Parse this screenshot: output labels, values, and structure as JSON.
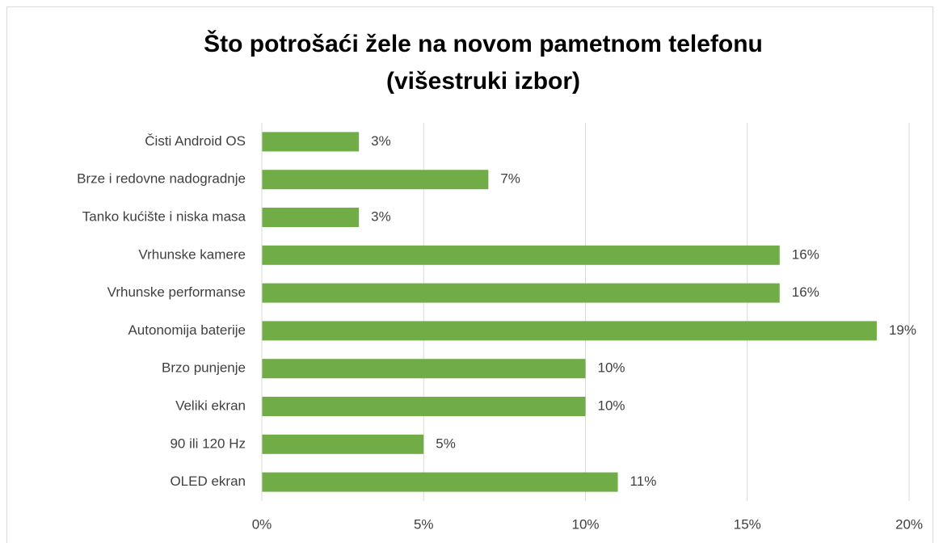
{
  "chart_data": {
    "type": "bar",
    "orientation": "horizontal",
    "title": [
      "Što potrošaći žele na novom pametnom telefonu",
      "(višestruki izbor)"
    ],
    "categories": [
      "Čisti Android OS",
      "Brze i redovne nadogradnje",
      "Tanko kućište i niska masa",
      "Vrhunske kamere",
      "Vrhunske performanse",
      "Autonomija baterije",
      "Brzo punjenje",
      "Veliki ekran",
      "90 ili 120 Hz",
      "OLED ekran"
    ],
    "values": [
      3,
      7,
      3,
      16,
      16,
      19,
      10,
      10,
      5,
      11
    ],
    "value_labels": [
      "3%",
      "7%",
      "3%",
      "16%",
      "16%",
      "19%",
      "10%",
      "10%",
      "5%",
      "11%"
    ],
    "color": "#70ad47",
    "xlim": [
      0,
      20
    ],
    "xticks": [
      {
        "value": 0,
        "label": "0%"
      },
      {
        "value": 5,
        "label": "5%"
      },
      {
        "value": 10,
        "label": "10%"
      },
      {
        "value": 15,
        "label": "15%"
      },
      {
        "value": 20,
        "label": "20%"
      }
    ],
    "grid": true
  }
}
